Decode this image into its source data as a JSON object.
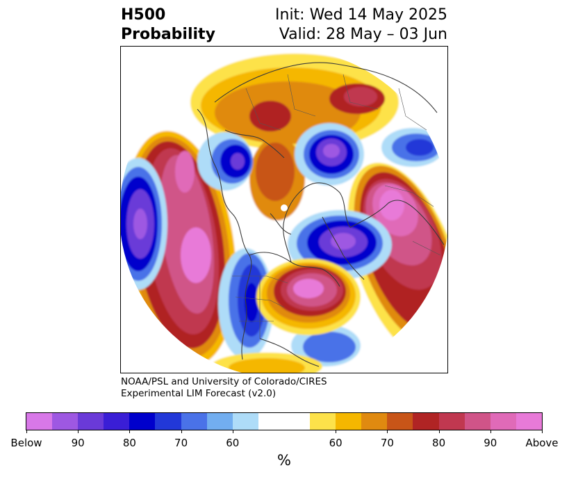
{
  "header": {
    "title_line1": "H500",
    "title_line2": "Probability",
    "init_label": "Init: Wed 14 May 2025",
    "valid_label": "Valid: 28 May – 03 Jun"
  },
  "credit": {
    "line1": "NOAA/PSL and University of Colorado/CIRES",
    "line2": "Experimental LIM Forecast (v2.0)"
  },
  "colorbar": {
    "unit": "%",
    "tick_labels": [
      "Below",
      "90",
      "80",
      "70",
      "60",
      "60",
      "70",
      "80",
      "90",
      "Above"
    ],
    "below_colors": [
      "#d878e8",
      "#9e58e2",
      "#6a3ad8",
      "#3a1ed6",
      "#0000cc",
      "#2238d8",
      "#4a72e8",
      "#72aef0",
      "#aedcf8"
    ],
    "neutral_color": "#ffffff",
    "above_colors": [
      "#fde24a",
      "#f5b700",
      "#e08a10",
      "#c85518",
      "#b02424",
      "#c03850",
      "#d05488",
      "#e06ab8",
      "#e87ad8"
    ]
  },
  "map": {
    "projection": "polar stereographic (North Pole)",
    "background_color": "#ffffff",
    "coastline_color": "#3a3a3a"
  }
}
